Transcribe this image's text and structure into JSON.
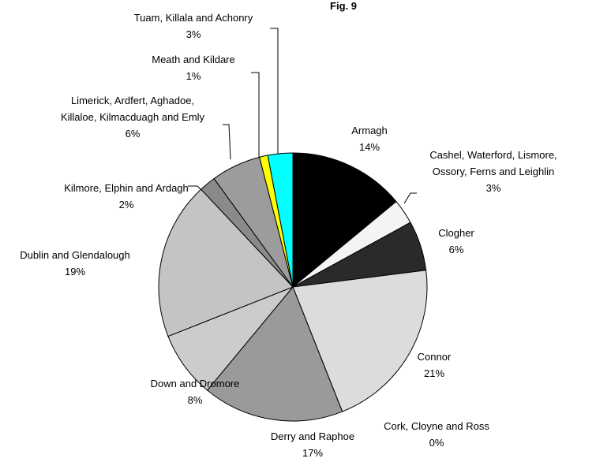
{
  "chart_data": {
    "type": "pie",
    "title": "Fig. 9",
    "categories": [
      "Armagh",
      "Cashel, Waterford, Lismore, Ossory, Ferns and Leighlin",
      "Clogher",
      "Connor",
      "Cork, Cloyne and Ross",
      "Derry and Raphoe",
      "Down and Dromore",
      "Dublin and Glendalough",
      "Kilmore, Elphin and Ardagh",
      "Limerick, Ardfert, Aghadoe, Killaloe, Kilmacduagh and Emly",
      "Meath and Kildare",
      "Tuam, Killala and Achonry"
    ],
    "values": [
      14,
      3,
      6,
      21,
      0,
      17,
      8,
      19,
      2,
      6,
      1,
      3
    ],
    "value_labels": [
      "14%",
      "3%",
      "6%",
      "21%",
      "0%",
      "17%",
      "8%",
      "19%",
      "2%",
      "6%",
      "1%",
      "3%"
    ],
    "colors": [
      "#000000",
      "#f4f4f4",
      "#2a2a2a",
      "#dcdcdc",
      "#ffffff",
      "#9a9a9a",
      "#cccccc",
      "#c4c4c4",
      "#8a8a8a",
      "#9c9c9c",
      "#ffff00",
      "#00ffff"
    ]
  }
}
